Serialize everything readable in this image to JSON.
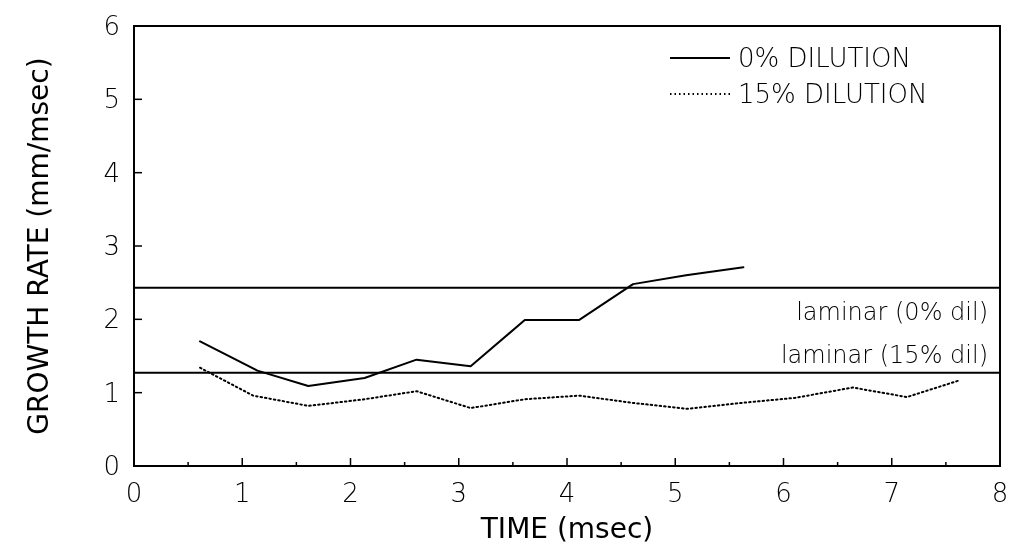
{
  "chart_data": {
    "type": "line",
    "xlabel": "TIME (msec)",
    "ylabel": "GROWTH RATE (mm/msec)",
    "xlim": [
      0,
      8
    ],
    "ylim": [
      0,
      6
    ],
    "xticks": [
      0,
      {
        "value": 0.5,
        "label": null
      },
      1,
      {
        "value": 1.5,
        "label": null
      },
      2,
      {
        "value": 2.5,
        "label": null
      },
      3,
      {
        "value": 3.5,
        "label": null
      },
      4,
      {
        "value": 4.5,
        "label": null
      },
      5,
      {
        "value": 5.5,
        "label": null
      },
      6,
      {
        "value": 6.5,
        "label": null
      },
      7,
      {
        "value": 7.5,
        "label": null
      },
      8
    ],
    "yticks": [
      0,
      1,
      2,
      3,
      4,
      5,
      6
    ],
    "grid": false,
    "legend": "top right",
    "marker": "none",
    "series": [
      {
        "name": "0% DILUTION",
        "color": "#000000",
        "line_style": "solid",
        "x": [
          0.61,
          1.14,
          1.61,
          2.13,
          2.61,
          3.11,
          3.61,
          4.11,
          4.61,
          5.1,
          5.63
        ],
        "values": [
          1.7,
          1.3,
          1.09,
          1.2,
          1.45,
          1.36,
          1.99,
          1.99,
          2.48,
          2.6,
          2.71
        ]
      },
      {
        "name": "15% DILUTION",
        "color": "#000000",
        "line_style": "dotted",
        "x": [
          0.61,
          1.1,
          1.61,
          2.13,
          2.61,
          3.11,
          3.61,
          4.11,
          4.61,
          5.11,
          5.61,
          6.11,
          6.64,
          7.14,
          7.63
        ],
        "values": [
          1.34,
          0.96,
          0.82,
          0.91,
          1.02,
          0.79,
          0.91,
          0.96,
          0.86,
          0.78,
          0.86,
          0.93,
          1.07,
          0.94,
          1.17
        ]
      }
    ],
    "ref_lines": [
      {
        "axis": "y",
        "value": 2.43,
        "label": "laminar (0% dil)",
        "color": "#000000"
      },
      {
        "axis": "y",
        "value": 1.27,
        "label": "laminar (15% dil)",
        "color": "#000000"
      }
    ]
  }
}
